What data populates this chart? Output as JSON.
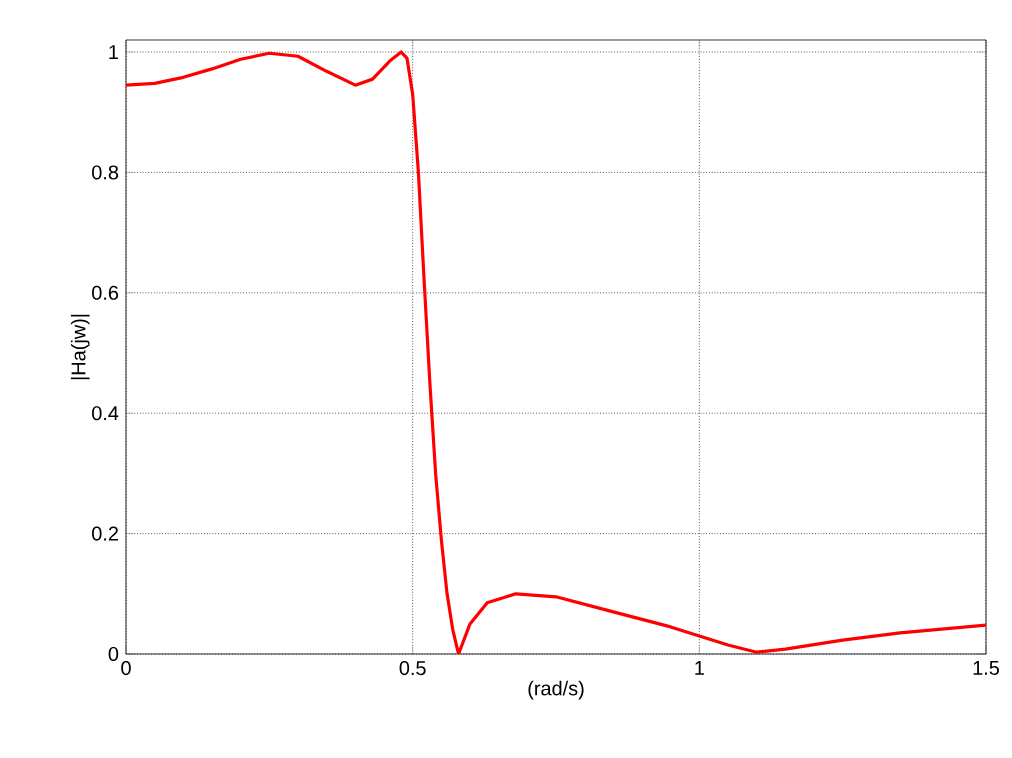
{
  "chart_data": {
    "type": "line",
    "xlabel": "(rad/s)",
    "ylabel": "|Ha(jw)|",
    "x": [
      0,
      0.05,
      0.1,
      0.15,
      0.2,
      0.25,
      0.3,
      0.35,
      0.4,
      0.43,
      0.46,
      0.48,
      0.49,
      0.5,
      0.51,
      0.52,
      0.53,
      0.54,
      0.55,
      0.56,
      0.57,
      0.58,
      0.6,
      0.63,
      0.68,
      0.75,
      0.85,
      0.95,
      1.05,
      1.1,
      1.15,
      1.25,
      1.35,
      1.5
    ],
    "series": [
      {
        "color": "#ff0000",
        "values": [
          0.945,
          0.948,
          0.958,
          0.972,
          0.988,
          0.998,
          0.993,
          0.968,
          0.945,
          0.955,
          0.985,
          1.0,
          0.99,
          0.93,
          0.8,
          0.62,
          0.45,
          0.3,
          0.19,
          0.1,
          0.04,
          0.0,
          0.05,
          0.085,
          0.1,
          0.095,
          0.07,
          0.045,
          0.015,
          0.003,
          0.008,
          0.023,
          0.035,
          0.048
        ]
      }
    ],
    "xlim": [
      0,
      1.5
    ],
    "ylim": [
      0,
      1.02
    ],
    "xticks": [
      0,
      0.5,
      1,
      1.5
    ],
    "yticks": [
      0,
      0.2,
      0.4,
      0.6,
      0.8,
      1
    ],
    "grid": true,
    "line_style": "solid",
    "marker": "none"
  }
}
